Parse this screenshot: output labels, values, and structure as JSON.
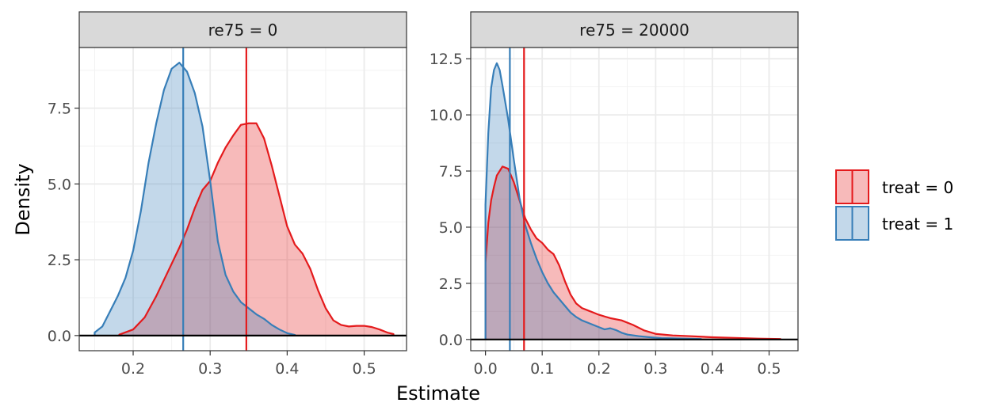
{
  "chart_data": {
    "type": "area",
    "xlabel": "Estimate",
    "ylabel": "Density",
    "colors": {
      "treat0": "#e41a1c",
      "treat1": "#377eb8"
    },
    "legend": {
      "position": "right",
      "entries": [
        {
          "key": "treat0",
          "label": "treat = 0"
        },
        {
          "key": "treat1",
          "label": "treat = 1"
        }
      ]
    },
    "panels": [
      {
        "strip": "re75 = 0",
        "xlim": [
          0.13,
          0.555
        ],
        "ylim": [
          -0.5,
          9.5
        ],
        "x_ticks": [
          0.2,
          0.3,
          0.4,
          0.5
        ],
        "x_tick_labels": [
          "0.2",
          "0.3",
          "0.4",
          "0.5"
        ],
        "y_ticks": [
          0,
          2.5,
          5,
          7.5
        ],
        "y_tick_labels": [
          "0.0",
          "2.5",
          "5.0",
          "7.5"
        ],
        "series": [
          {
            "name": "treat = 0",
            "key": "treat0",
            "vline": 0.347,
            "points": [
              [
                0.182,
                0.03
              ],
              [
                0.2,
                0.2
              ],
              [
                0.215,
                0.6
              ],
              [
                0.23,
                1.3
              ],
              [
                0.245,
                2.1
              ],
              [
                0.26,
                2.9
              ],
              [
                0.27,
                3.5
              ],
              [
                0.28,
                4.2
              ],
              [
                0.29,
                4.8
              ],
              [
                0.3,
                5.1
              ],
              [
                0.31,
                5.7
              ],
              [
                0.32,
                6.2
              ],
              [
                0.33,
                6.6
              ],
              [
                0.34,
                6.95
              ],
              [
                0.35,
                7.0
              ],
              [
                0.36,
                7.0
              ],
              [
                0.37,
                6.5
              ],
              [
                0.38,
                5.6
              ],
              [
                0.39,
                4.6
              ],
              [
                0.4,
                3.6
              ],
              [
                0.41,
                3.0
              ],
              [
                0.42,
                2.7
              ],
              [
                0.43,
                2.2
              ],
              [
                0.44,
                1.5
              ],
              [
                0.45,
                0.9
              ],
              [
                0.46,
                0.5
              ],
              [
                0.47,
                0.35
              ],
              [
                0.48,
                0.3
              ],
              [
                0.49,
                0.32
              ],
              [
                0.5,
                0.32
              ],
              [
                0.51,
                0.28
              ],
              [
                0.52,
                0.2
              ],
              [
                0.53,
                0.1
              ],
              [
                0.538,
                0.05
              ]
            ]
          },
          {
            "name": "treat = 1",
            "key": "treat1",
            "vline": 0.265,
            "points": [
              [
                0.15,
                0.1
              ],
              [
                0.16,
                0.3
              ],
              [
                0.17,
                0.8
              ],
              [
                0.18,
                1.3
              ],
              [
                0.19,
                1.9
              ],
              [
                0.2,
                2.8
              ],
              [
                0.21,
                4.1
              ],
              [
                0.22,
                5.7
              ],
              [
                0.23,
                7.0
              ],
              [
                0.24,
                8.1
              ],
              [
                0.25,
                8.8
              ],
              [
                0.26,
                9.0
              ],
              [
                0.27,
                8.7
              ],
              [
                0.28,
                8.0
              ],
              [
                0.29,
                6.9
              ],
              [
                0.3,
                5.1
              ],
              [
                0.31,
                3.1
              ],
              [
                0.32,
                2.0
              ],
              [
                0.33,
                1.45
              ],
              [
                0.34,
                1.1
              ],
              [
                0.35,
                0.9
              ],
              [
                0.36,
                0.7
              ],
              [
                0.37,
                0.55
              ],
              [
                0.38,
                0.35
              ],
              [
                0.39,
                0.2
              ],
              [
                0.4,
                0.08
              ],
              [
                0.41,
                0.02
              ]
            ]
          }
        ]
      },
      {
        "strip": "re75 = 20000",
        "xlim": [
          -0.026,
          0.551
        ],
        "ylim": [
          -0.5,
          13.0
        ],
        "x_ticks": [
          0,
          0.1,
          0.2,
          0.3,
          0.4,
          0.5
        ],
        "x_tick_labels": [
          "0.0",
          "0.1",
          "0.2",
          "0.3",
          "0.4",
          "0.5"
        ],
        "y_ticks": [
          0,
          2.5,
          5,
          7.5,
          10,
          12.5
        ],
        "y_tick_labels": [
          "0.0",
          "2.5",
          "5.0",
          "7.5",
          "10.0",
          "12.5"
        ],
        "series": [
          {
            "name": "treat = 0",
            "key": "treat0",
            "vline": 0.068,
            "points": [
              [
                0.0,
                3.4
              ],
              [
                0.005,
                5.2
              ],
              [
                0.01,
                6.2
              ],
              [
                0.015,
                6.8
              ],
              [
                0.02,
                7.3
              ],
              [
                0.03,
                7.7
              ],
              [
                0.04,
                7.6
              ],
              [
                0.05,
                7.0
              ],
              [
                0.06,
                6.2
              ],
              [
                0.07,
                5.4
              ],
              [
                0.08,
                4.9
              ],
              [
                0.09,
                4.5
              ],
              [
                0.1,
                4.3
              ],
              [
                0.11,
                4.0
              ],
              [
                0.12,
                3.8
              ],
              [
                0.13,
                3.3
              ],
              [
                0.14,
                2.6
              ],
              [
                0.15,
                2.0
              ],
              [
                0.16,
                1.6
              ],
              [
                0.17,
                1.4
              ],
              [
                0.18,
                1.3
              ],
              [
                0.19,
                1.2
              ],
              [
                0.2,
                1.1
              ],
              [
                0.22,
                0.95
              ],
              [
                0.24,
                0.85
              ],
              [
                0.26,
                0.65
              ],
              [
                0.28,
                0.4
              ],
              [
                0.3,
                0.25
              ],
              [
                0.33,
                0.18
              ],
              [
                0.36,
                0.15
              ],
              [
                0.4,
                0.1
              ],
              [
                0.44,
                0.07
              ],
              [
                0.48,
                0.04
              ],
              [
                0.52,
                0.02
              ]
            ]
          },
          {
            "name": "treat = 1",
            "key": "treat1",
            "vline": 0.043,
            "points": [
              [
                0.0,
                6.0
              ],
              [
                0.005,
                9.2
              ],
              [
                0.01,
                11.2
              ],
              [
                0.015,
                12.0
              ],
              [
                0.02,
                12.3
              ],
              [
                0.025,
                12.0
              ],
              [
                0.03,
                11.3
              ],
              [
                0.04,
                9.8
              ],
              [
                0.05,
                8.0
              ],
              [
                0.06,
                6.3
              ],
              [
                0.07,
                5.1
              ],
              [
                0.08,
                4.3
              ],
              [
                0.09,
                3.6
              ],
              [
                0.1,
                3.0
              ],
              [
                0.11,
                2.5
              ],
              [
                0.12,
                2.1
              ],
              [
                0.13,
                1.8
              ],
              [
                0.14,
                1.5
              ],
              [
                0.15,
                1.2
              ],
              [
                0.16,
                1.0
              ],
              [
                0.17,
                0.85
              ],
              [
                0.18,
                0.75
              ],
              [
                0.19,
                0.65
              ],
              [
                0.2,
                0.55
              ],
              [
                0.21,
                0.45
              ],
              [
                0.22,
                0.5
              ],
              [
                0.23,
                0.42
              ],
              [
                0.24,
                0.3
              ],
              [
                0.25,
                0.22
              ],
              [
                0.27,
                0.15
              ],
              [
                0.29,
                0.1
              ],
              [
                0.31,
                0.06
              ],
              [
                0.33,
                0.05
              ],
              [
                0.35,
                0.04
              ],
              [
                0.38,
                0.02
              ]
            ]
          }
        ]
      }
    ]
  }
}
